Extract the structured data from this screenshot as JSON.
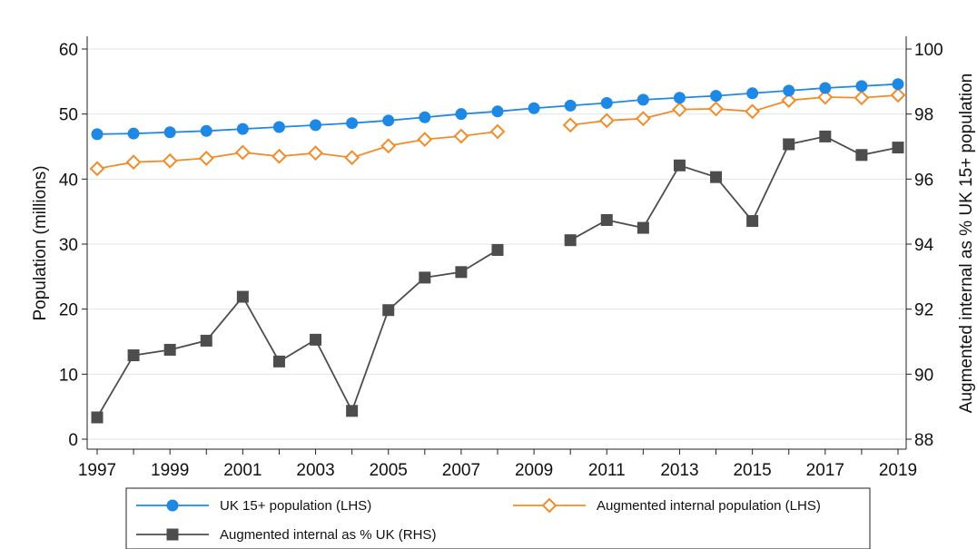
{
  "chart_data": {
    "type": "line",
    "x": [
      1997,
      1998,
      1999,
      2000,
      2001,
      2002,
      2003,
      2004,
      2005,
      2006,
      2007,
      2008,
      2009,
      2010,
      2011,
      2012,
      2013,
      2014,
      2015,
      2016,
      2017,
      2018,
      2019
    ],
    "x_ticks": [
      "1997",
      "1999",
      "2001",
      "2003",
      "2005",
      "2007",
      "2009",
      "2011",
      "2013",
      "2015",
      "2017",
      "2019"
    ],
    "xlim": [
      1997,
      2019
    ],
    "ylabel_left": "Population (millions)",
    "ylabel_right": "Augmented internal as % UK 15+ population",
    "ylim_left": [
      0,
      60
    ],
    "yticks_left": [
      "0",
      "10",
      "20",
      "30",
      "40",
      "50",
      "60"
    ],
    "ylim_right": [
      88,
      100
    ],
    "yticks_right": [
      "88",
      "90",
      "92",
      "94",
      "96",
      "98",
      "100"
    ],
    "grid": "horizontal",
    "legend_position": "bottom",
    "series": [
      {
        "name": "UK 15+ population (LHS)",
        "axis": "left",
        "color": "#1e88e5",
        "marker": "circle",
        "values": [
          46.9,
          47.0,
          47.2,
          47.4,
          47.7,
          48.0,
          48.3,
          48.6,
          49.0,
          49.5,
          50.0,
          50.4,
          50.9,
          51.3,
          51.7,
          52.2,
          52.5,
          52.8,
          53.2,
          53.6,
          54.0,
          54.3,
          54.6
        ]
      },
      {
        "name": "Augmented internal population (LHS)",
        "axis": "left",
        "color": "#f28c28",
        "marker": "diamond",
        "values": [
          41.6,
          42.6,
          42.8,
          43.2,
          44.1,
          43.5,
          44.0,
          43.3,
          45.1,
          46.1,
          46.6,
          47.3,
          null,
          48.3,
          49.0,
          49.3,
          50.7,
          50.8,
          50.4,
          52.1,
          52.6,
          52.5,
          52.9
        ]
      },
      {
        "name": "Augmented internal as % UK (RHS)",
        "axis": "right",
        "color": "#4d4d4d",
        "marker": "square",
        "values": [
          88.67,
          90.58,
          90.75,
          91.03,
          92.38,
          90.39,
          91.06,
          88.87,
          91.97,
          92.97,
          93.14,
          93.82,
          null,
          94.12,
          94.74,
          94.5,
          96.42,
          96.06,
          94.71,
          97.07,
          97.31,
          96.74,
          96.97
        ]
      }
    ]
  }
}
